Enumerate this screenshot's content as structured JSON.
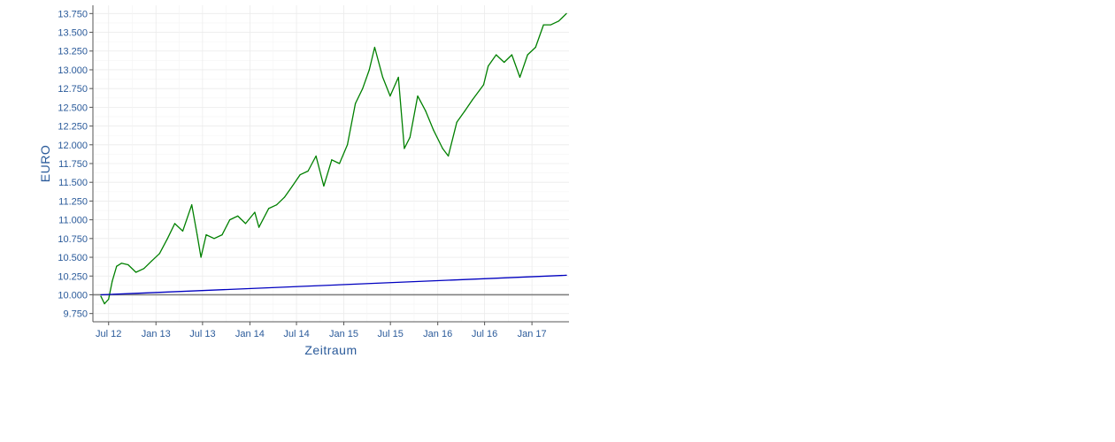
{
  "chart_data": {
    "type": "line",
    "xlabel": "Zeitraum",
    "ylabel": "EURO",
    "grid": true,
    "xlim": [
      "2012-05-01",
      "2017-05-25"
    ],
    "ylim": [
      9.64,
      13.86
    ],
    "y_ticks": [
      9.75,
      10.0,
      10.25,
      10.5,
      10.75,
      11.0,
      11.25,
      11.5,
      11.75,
      12.0,
      12.25,
      12.5,
      12.75,
      13.0,
      13.25,
      13.5,
      13.75
    ],
    "y_tick_labels": [
      "9.750",
      "10.000",
      "10.250",
      "10.500",
      "10.750",
      "11.000",
      "11.250",
      "11.500",
      "11.750",
      "12.000",
      "12.250",
      "12.500",
      "12.750",
      "13.000",
      "13.250",
      "13.500",
      "13.750"
    ],
    "x_ticks": [
      "2012-07-01",
      "2013-01-01",
      "2013-07-01",
      "2014-01-01",
      "2014-07-01",
      "2015-01-01",
      "2015-07-01",
      "2016-01-01",
      "2016-07-01",
      "2017-01-01"
    ],
    "x_tick_labels": [
      "Jul 12",
      "Jan 13",
      "Jul 13",
      "Jan 14",
      "Jul 14",
      "Jan 15",
      "Jul 15",
      "Jan 16",
      "Jul 16",
      "Jan 17"
    ],
    "reference_line": {
      "y": 10.0,
      "color": "#808080"
    },
    "series": [
      {
        "color": "#008000",
        "x": [
          "2012-06-01",
          "2012-06-15",
          "2012-07-01",
          "2012-07-15",
          "2012-08-01",
          "2012-08-20",
          "2012-09-15",
          "2012-10-15",
          "2012-11-15",
          "2012-12-15",
          "2013-01-15",
          "2013-02-15",
          "2013-03-15",
          "2013-04-15",
          "2013-05-20",
          "2013-06-10",
          "2013-06-25",
          "2013-07-15",
          "2013-08-15",
          "2013-09-15",
          "2013-10-15",
          "2013-11-15",
          "2013-12-15",
          "2014-01-20",
          "2014-02-05",
          "2014-03-15",
          "2014-04-15",
          "2014-05-15",
          "2014-06-15",
          "2014-07-15",
          "2014-08-15",
          "2014-09-15",
          "2014-10-15",
          "2014-11-15",
          "2014-12-15",
          "2015-01-15",
          "2015-02-15",
          "2015-03-15",
          "2015-04-10",
          "2015-05-01",
          "2015-06-01",
          "2015-06-30",
          "2015-08-01",
          "2015-08-24",
          "2015-09-15",
          "2015-10-15",
          "2015-11-15",
          "2015-12-15",
          "2016-01-20",
          "2016-02-11",
          "2016-03-15",
          "2016-04-15",
          "2016-05-15",
          "2016-06-27",
          "2016-07-15",
          "2016-08-15",
          "2016-09-15",
          "2016-10-15",
          "2016-11-15",
          "2016-12-15",
          "2017-01-15",
          "2017-02-15",
          "2017-03-15",
          "2017-04-15",
          "2017-05-15"
        ],
        "y": [
          9.98,
          9.88,
          9.94,
          10.18,
          10.38,
          10.42,
          10.4,
          10.3,
          10.35,
          10.45,
          10.55,
          10.75,
          10.95,
          10.85,
          11.2,
          10.8,
          10.5,
          10.8,
          10.75,
          10.8,
          11.0,
          11.05,
          10.95,
          11.1,
          10.9,
          11.15,
          11.2,
          11.3,
          11.45,
          11.6,
          11.65,
          11.85,
          11.45,
          11.8,
          11.75,
          12.0,
          12.55,
          12.75,
          13.0,
          13.3,
          12.9,
          12.65,
          12.9,
          11.95,
          12.1,
          12.65,
          12.45,
          12.2,
          11.95,
          11.85,
          12.3,
          12.45,
          12.6,
          12.8,
          13.05,
          13.2,
          13.1,
          13.2,
          12.9,
          13.2,
          13.3,
          13.6,
          13.6,
          13.65,
          13.75
        ]
      },
      {
        "color": "#0000c0",
        "x": [
          "2012-06-01",
          "2017-05-15"
        ],
        "y": [
          10.0,
          10.26
        ]
      }
    ]
  }
}
